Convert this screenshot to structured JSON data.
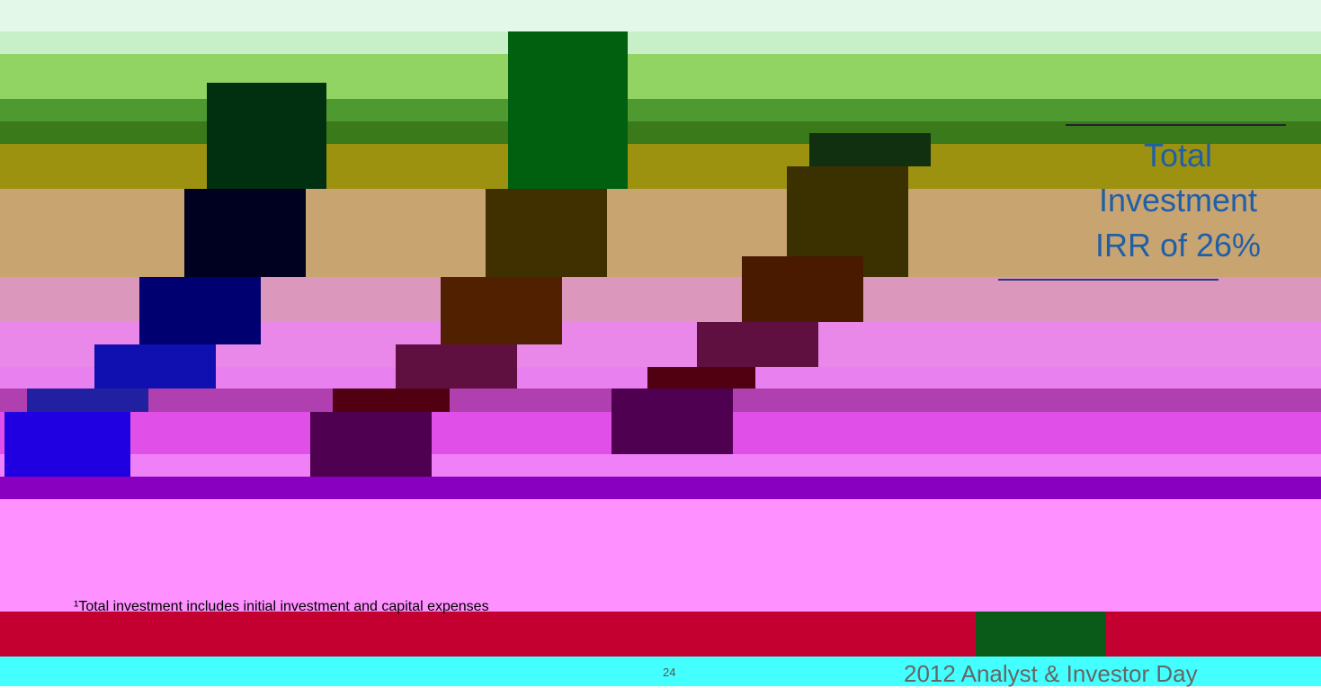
{
  "callout": {
    "lines": [
      "Total",
      "Investment",
      "IRR of 26%"
    ]
  },
  "footnote": "¹Total investment includes initial investment and capital expenses",
  "page_number": "24",
  "footer": "2012 Analyst & Investor Day"
}
